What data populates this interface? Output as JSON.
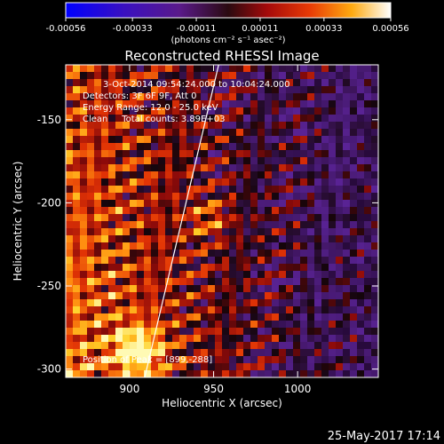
{
  "colorbar": {
    "tick_labels": [
      "-0.00056",
      "-0.00033",
      "-0.00011",
      "0.00011",
      "0.00033",
      "0.00056"
    ],
    "units_label": "(photons cm⁻² s⁻¹ asec⁻²)",
    "range": [
      -0.00056,
      0.00056
    ]
  },
  "chart_data": {
    "type": "heatmap",
    "title": "Reconstructed RHESSI Image",
    "xlabel": "Heliocentric X (arcsec)",
    "ylabel": "Heliocentric Y (arcsec)",
    "xlim": [
      862,
      1048
    ],
    "ylim": [
      -305,
      -117
    ],
    "x_ticks": [
      900,
      950,
      1000
    ],
    "y_ticks": [
      -300,
      -250,
      -200,
      -150
    ],
    "annotations": [
      "3-Oct-2014 09:54:24.000 to 10:04:24.000",
      "Detectors: 3F 6F 9F, Att 0",
      "Energy Range: 12.0 - 25.0 keV",
      "Clean     Total counts: 3.89E+03"
    ],
    "peak_label": "Position of Peak = [899,-288]",
    "peak_position": [
      899,
      -288
    ],
    "limb_line": [
      [
        909,
        -305
      ],
      [
        953,
        -117
      ]
    ]
  },
  "timestamp": "25-May-2017 17:14"
}
